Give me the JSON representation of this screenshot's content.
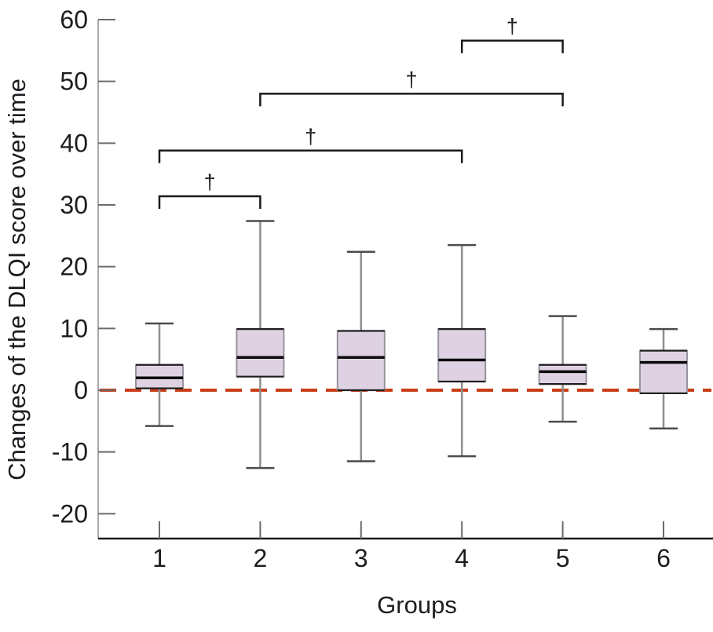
{
  "chart_data": {
    "type": "boxplot",
    "title": "",
    "xlabel": "Groups",
    "ylabel": "Changes of the DLQI score over time",
    "ylim": [
      -24,
      60
    ],
    "yticks": [
      60,
      50,
      40,
      30,
      20,
      10,
      0,
      -10,
      -20
    ],
    "categories": [
      "1",
      "2",
      "3",
      "4",
      "5",
      "6"
    ],
    "grid": "off",
    "legend": "none",
    "zero_reference_line": {
      "value": 0,
      "style": "dashed",
      "color": "#c93d16"
    },
    "boxes": [
      {
        "group": "1",
        "whisker_low": -5.8,
        "q1": 0.3,
        "median": 2.0,
        "q3": 4.1,
        "whisker_high": 10.8
      },
      {
        "group": "2",
        "whisker_low": -12.6,
        "q1": 2.2,
        "median": 5.3,
        "q3": 9.9,
        "whisker_high": 27.4
      },
      {
        "group": "3",
        "whisker_low": -11.5,
        "q1": 0.0,
        "median": 5.3,
        "q3": 9.6,
        "whisker_high": 22.4
      },
      {
        "group": "4",
        "whisker_low": -10.7,
        "q1": 1.4,
        "median": 4.9,
        "q3": 9.9,
        "whisker_high": 23.5
      },
      {
        "group": "5",
        "whisker_low": -5.1,
        "q1": 1.0,
        "median": 3.0,
        "q3": 4.1,
        "whisker_high": 12.0
      },
      {
        "group": "6",
        "whisker_low": -6.2,
        "q1": -0.5,
        "median": 4.5,
        "q3": 6.4,
        "whisker_high": 9.9
      }
    ],
    "significance_brackets": [
      {
        "from": "1",
        "to": "2",
        "label": "†",
        "bar_value": 31.4
      },
      {
        "from": "1",
        "to": "4",
        "label": "†",
        "bar_value": 38.8
      },
      {
        "from": "2",
        "to": "5",
        "label": "†",
        "bar_value": 48.0
      },
      {
        "from": "4",
        "to": "5",
        "label": "†",
        "bar_value": 56.6
      }
    ],
    "colors": {
      "box_fill": "#ded2e2",
      "box_side_border": "#98939c",
      "box_edge": "#1f1f1f",
      "median": "#0a0a0a",
      "whisker_stem": "#8f8f8f",
      "whisker_cap": "#4c4c4c",
      "zero_line": "#c93d16",
      "y_axis": "#a9a9a9",
      "x_axis": "#1c1c1c",
      "tick": "#6b6b6b",
      "bracket": "#1a1a1a",
      "text": "#1f1b20"
    }
  }
}
